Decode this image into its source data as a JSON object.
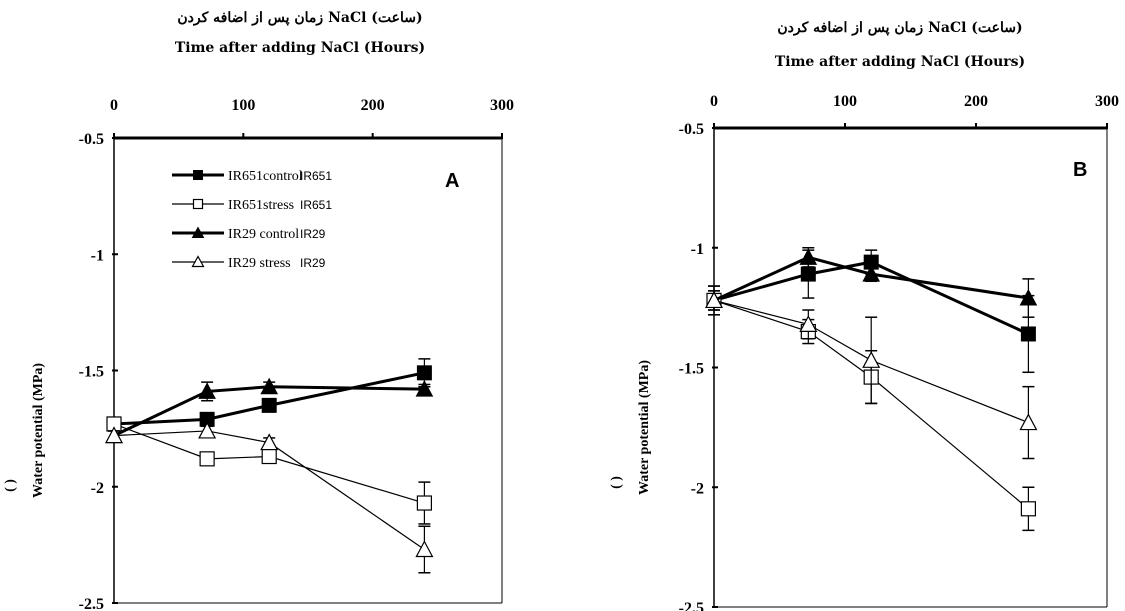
{
  "chart_data": [
    {
      "type": "line",
      "panel_letter": "A",
      "title_fa": "زمان پس از اضافه کردن NaCl (ساعت)",
      "title_en": "Time after adding NaCl (Hours)",
      "ylabel": "Water potential (MPa)",
      "ylabel_paren": "( )",
      "xlim": [
        0,
        300
      ],
      "ylim": [
        -2.5,
        -0.5
      ],
      "x_ticks": [
        "0",
        "100",
        "200",
        "300"
      ],
      "y_ticks": [
        "-0.5",
        "-1",
        "-1.5",
        "-2",
        "-2.5"
      ],
      "legend_position": "top-center",
      "x": [
        0,
        72,
        120,
        240
      ],
      "series": [
        {
          "name": "IR651control",
          "name2": "IR651",
          "marker": "filled-square",
          "line": "thick",
          "values": [
            -1.73,
            -1.71,
            -1.65,
            -1.51
          ],
          "err": [
            0.02,
            0.02,
            0.02,
            0.06
          ]
        },
        {
          "name": "IR651stress",
          "name2": "IR651",
          "marker": "open-square",
          "line": "thin",
          "values": [
            -1.73,
            -1.88,
            -1.87,
            -2.07
          ],
          "err": [
            0.02,
            0.02,
            0.02,
            0.09
          ]
        },
        {
          "name": "IR29 control",
          "name2": "IR29",
          "marker": "filled-triangle",
          "line": "thick",
          "values": [
            -1.78,
            -1.59,
            -1.57,
            -1.58
          ],
          "err": [
            0.02,
            0.04,
            0.02,
            0.02
          ]
        },
        {
          "name": "IR29 stress",
          "name2": "IR29",
          "marker": "open-triangle",
          "line": "thin",
          "values": [
            -1.78,
            -1.76,
            -1.81,
            -2.27
          ],
          "err": [
            0.02,
            0.02,
            0.02,
            0.1
          ]
        }
      ]
    },
    {
      "type": "line",
      "panel_letter": "B",
      "title_fa": "زمان پس از اضافه کردن NaCl (ساعت)",
      "title_en": "Time after adding NaCl (Hours)",
      "ylabel": "Water potential (MPa)",
      "ylabel_paren": "( )",
      "xlim": [
        0,
        300
      ],
      "ylim": [
        -2.5,
        -0.5
      ],
      "x_ticks": [
        "0",
        "100",
        "200",
        "300"
      ],
      "y_ticks": [
        "-0.5",
        "-1",
        "-1.5",
        "-2",
        "-2.5"
      ],
      "x": [
        0,
        72,
        120,
        240
      ],
      "series": [
        {
          "name": "IR651control",
          "marker": "filled-square",
          "line": "thick",
          "values": [
            -1.22,
            -1.11,
            -1.06,
            -1.36
          ],
          "err": [
            0.06,
            0.1,
            0.05,
            0.16
          ]
        },
        {
          "name": "IR651stress",
          "marker": "open-square",
          "line": "thin",
          "values": [
            -1.22,
            -1.35,
            -1.54,
            -2.09
          ],
          "err": [
            0.06,
            0.05,
            0.11,
            0.09
          ]
        },
        {
          "name": "IR29 control",
          "marker": "filled-triangle",
          "line": "thick",
          "values": [
            -1.22,
            -1.04,
            -1.11,
            -1.21
          ],
          "err": [
            0.04,
            0.04,
            0.03,
            0.08
          ]
        },
        {
          "name": "IR29 stress",
          "marker": "open-triangle",
          "line": "thin",
          "values": [
            -1.22,
            -1.32,
            -1.47,
            -1.73
          ],
          "err": [
            0.04,
            0.06,
            0.18,
            0.15
          ]
        }
      ]
    }
  ]
}
